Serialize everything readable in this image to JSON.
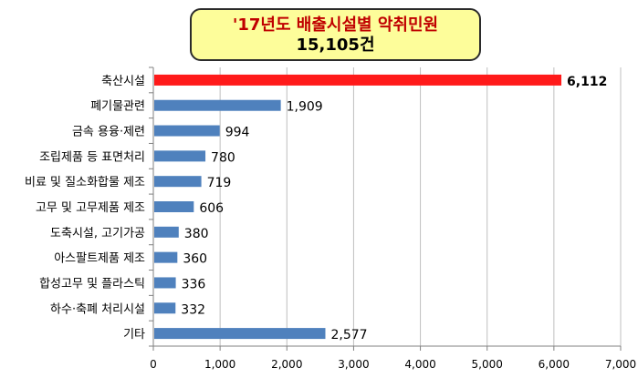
{
  "chart_data": {
    "type": "bar",
    "orientation": "horizontal",
    "title": "'17년도 배출시설별 악취민원",
    "subtitle": "15,105건",
    "categories": [
      "축산시설",
      "폐기물관련",
      "금속 용융·제련",
      "조립제품 등 표면처리",
      "비료 및 질소화합물 제조",
      "고무 및 고무제품 제조",
      "도축시설, 고기가공",
      "아스팔트제품 제조",
      "합성고무 및 플라스틱",
      "하수·축폐 처리시설",
      "기타"
    ],
    "values": [
      6112,
      1909,
      994,
      780,
      719,
      606,
      380,
      360,
      336,
      332,
      2577
    ],
    "value_labels": [
      "6,112",
      "1,909",
      "994",
      "780",
      "719",
      "606",
      "380",
      "360",
      "336",
      "332",
      "2,577"
    ],
    "xlim": [
      0,
      7000
    ],
    "x_ticks": [
      0,
      1000,
      2000,
      3000,
      4000,
      5000,
      6000,
      7000
    ],
    "x_tick_labels": [
      "0",
      "1,000",
      "2,000",
      "3,000",
      "4,000",
      "5,000",
      "6,000",
      "7,000"
    ],
    "xlabel": "",
    "ylabel": "",
    "grid": true,
    "colors": {
      "highlight": "#ff1a1a",
      "bar": "#4f81bd",
      "grid": "#bfbfbf",
      "title_fill": "#fdfd9a",
      "title_text": "#c00000"
    },
    "highlight_index": 0
  }
}
